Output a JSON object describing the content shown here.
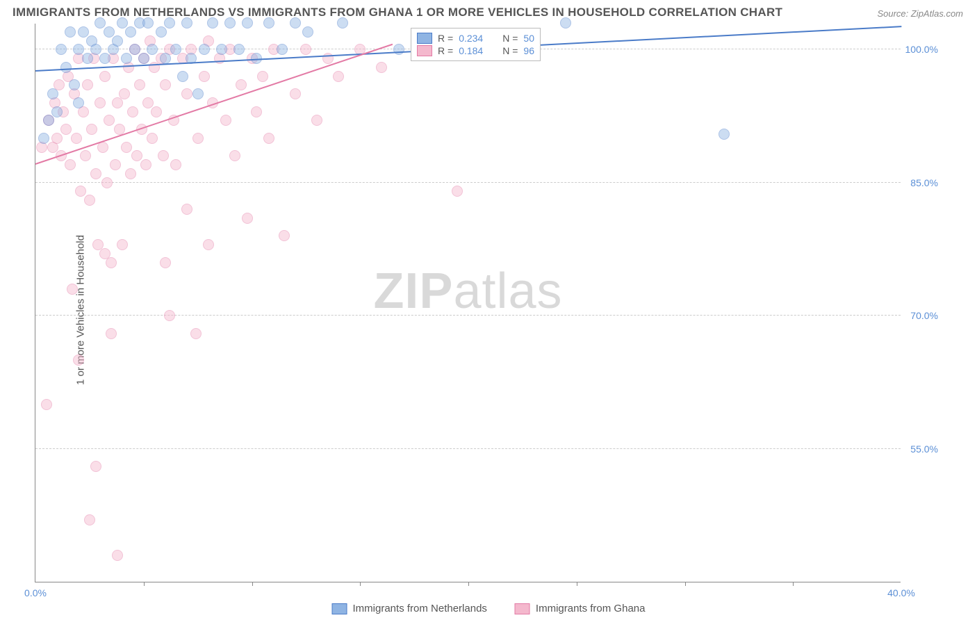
{
  "title": "IMMIGRANTS FROM NETHERLANDS VS IMMIGRANTS FROM GHANA 1 OR MORE VEHICLES IN HOUSEHOLD CORRELATION CHART",
  "source": "Source: ZipAtlas.com",
  "ylabel": "1 or more Vehicles in Household",
  "watermark_a": "ZIP",
  "watermark_b": "atlas",
  "chart": {
    "type": "scatter",
    "xlim": [
      0,
      40
    ],
    "ylim": [
      40,
      103
    ],
    "xticks": [
      0,
      40
    ],
    "xtick_labels": [
      "0.0%",
      "40.0%"
    ],
    "xtick_marks_only": [
      5,
      10,
      15,
      20,
      25,
      30,
      35
    ],
    "yticks": [
      55,
      70,
      85,
      100
    ],
    "ytick_labels": [
      "55.0%",
      "70.0%",
      "85.0%",
      "100.0%"
    ],
    "grid_color": "#cccccc",
    "axis_color": "#888888",
    "background_color": "#ffffff",
    "marker_radius": 8,
    "marker_opacity": 0.45,
    "series": [
      {
        "name": "Immigrants from Netherlands",
        "fill": "#8fb4e3",
        "stroke": "#4a7bc8",
        "line_color": "#4a7bc8",
        "R": "0.234",
        "N": "50",
        "regression": {
          "x1": 0,
          "y1": 97.5,
          "x2": 40,
          "y2": 102.5
        },
        "points": [
          [
            0.4,
            90
          ],
          [
            0.6,
            92
          ],
          [
            0.8,
            95
          ],
          [
            1.0,
            93
          ],
          [
            1.2,
            100
          ],
          [
            1.4,
            98
          ],
          [
            1.6,
            102
          ],
          [
            1.8,
            96
          ],
          [
            2.0,
            100
          ],
          [
            2.0,
            94
          ],
          [
            2.2,
            102
          ],
          [
            2.4,
            99
          ],
          [
            2.6,
            101
          ],
          [
            2.8,
            100
          ],
          [
            3.0,
            103
          ],
          [
            3.2,
            99
          ],
          [
            3.4,
            102
          ],
          [
            3.6,
            100
          ],
          [
            3.8,
            101
          ],
          [
            4.0,
            103
          ],
          [
            4.2,
            99
          ],
          [
            4.4,
            102
          ],
          [
            4.6,
            100
          ],
          [
            4.8,
            103
          ],
          [
            5.0,
            99
          ],
          [
            5.2,
            103
          ],
          [
            5.4,
            100
          ],
          [
            5.8,
            102
          ],
          [
            6.0,
            99
          ],
          [
            6.2,
            103
          ],
          [
            6.5,
            100
          ],
          [
            6.8,
            97
          ],
          [
            7.0,
            103
          ],
          [
            7.2,
            99
          ],
          [
            7.5,
            95
          ],
          [
            7.8,
            100
          ],
          [
            8.2,
            103
          ],
          [
            8.6,
            100
          ],
          [
            9.0,
            103
          ],
          [
            9.4,
            100
          ],
          [
            9.8,
            103
          ],
          [
            10.2,
            99
          ],
          [
            10.8,
            103
          ],
          [
            11.4,
            100
          ],
          [
            12.0,
            103
          ],
          [
            12.6,
            102
          ],
          [
            14.2,
            103
          ],
          [
            16.8,
            100
          ],
          [
            24.5,
            103
          ],
          [
            31.8,
            90.5
          ]
        ]
      },
      {
        "name": "Immigrants from Ghana",
        "fill": "#f4b8cd",
        "stroke": "#e37aa5",
        "line_color": "#e37aa5",
        "R": "0.184",
        "N": "96",
        "regression": {
          "x1": 0,
          "y1": 87,
          "x2": 16.5,
          "y2": 100.5
        },
        "points": [
          [
            0.3,
            89
          ],
          [
            0.5,
            60
          ],
          [
            0.6,
            92
          ],
          [
            0.8,
            89
          ],
          [
            0.9,
            94
          ],
          [
            1.0,
            90
          ],
          [
            1.1,
            96
          ],
          [
            1.2,
            88
          ],
          [
            1.3,
            93
          ],
          [
            1.4,
            91
          ],
          [
            1.5,
            97
          ],
          [
            1.6,
            87
          ],
          [
            1.7,
            73
          ],
          [
            1.8,
            95
          ],
          [
            1.9,
            90
          ],
          [
            2.0,
            65
          ],
          [
            2.0,
            99
          ],
          [
            2.1,
            84
          ],
          [
            2.2,
            93
          ],
          [
            2.3,
            88
          ],
          [
            2.4,
            96
          ],
          [
            2.5,
            83
          ],
          [
            2.5,
            47
          ],
          [
            2.6,
            91
          ],
          [
            2.7,
            99
          ],
          [
            2.8,
            86
          ],
          [
            2.8,
            53
          ],
          [
            2.9,
            78
          ],
          [
            3.0,
            94
          ],
          [
            3.1,
            89
          ],
          [
            3.2,
            97
          ],
          [
            3.2,
            77
          ],
          [
            3.3,
            85
          ],
          [
            3.4,
            92
          ],
          [
            3.5,
            76
          ],
          [
            3.5,
            68
          ],
          [
            3.6,
            99
          ],
          [
            3.7,
            87
          ],
          [
            3.8,
            43
          ],
          [
            3.8,
            94
          ],
          [
            3.9,
            91
          ],
          [
            4.0,
            78
          ],
          [
            4.1,
            95
          ],
          [
            4.2,
            89
          ],
          [
            4.3,
            98
          ],
          [
            4.4,
            86
          ],
          [
            4.5,
            93
          ],
          [
            4.6,
            100
          ],
          [
            4.7,
            88
          ],
          [
            4.8,
            96
          ],
          [
            4.9,
            91
          ],
          [
            5.0,
            99
          ],
          [
            5.1,
            87
          ],
          [
            5.2,
            94
          ],
          [
            5.3,
            101
          ],
          [
            5.4,
            90
          ],
          [
            5.5,
            98
          ],
          [
            5.6,
            93
          ],
          [
            5.8,
            99
          ],
          [
            5.9,
            88
          ],
          [
            6.0,
            76
          ],
          [
            6.0,
            96
          ],
          [
            6.2,
            70
          ],
          [
            6.2,
            100
          ],
          [
            6.4,
            92
          ],
          [
            6.5,
            87
          ],
          [
            6.8,
            99
          ],
          [
            7.0,
            82
          ],
          [
            7.0,
            95
          ],
          [
            7.2,
            100
          ],
          [
            7.4,
            68
          ],
          [
            7.5,
            90
          ],
          [
            7.8,
            97
          ],
          [
            8.0,
            101
          ],
          [
            8.0,
            78
          ],
          [
            8.2,
            94
          ],
          [
            8.5,
            99
          ],
          [
            8.8,
            92
          ],
          [
            9.0,
            100
          ],
          [
            9.2,
            88
          ],
          [
            9.5,
            96
          ],
          [
            9.8,
            81
          ],
          [
            10.0,
            99
          ],
          [
            10.2,
            93
          ],
          [
            10.5,
            97
          ],
          [
            10.8,
            90
          ],
          [
            11.0,
            100
          ],
          [
            11.5,
            79
          ],
          [
            12.0,
            95
          ],
          [
            12.5,
            100
          ],
          [
            13.0,
            92
          ],
          [
            13.5,
            99
          ],
          [
            14.0,
            97
          ],
          [
            15.0,
            100
          ],
          [
            16.0,
            98
          ],
          [
            19.5,
            84
          ]
        ]
      }
    ]
  },
  "stats_box": {
    "rows": [
      {
        "series_idx": 0,
        "R_label": "R =",
        "N_label": "N ="
      },
      {
        "series_idx": 1,
        "R_label": "R =",
        "N_label": "N ="
      }
    ]
  },
  "legend": {
    "items": [
      {
        "series_idx": 0
      },
      {
        "series_idx": 1
      }
    ]
  }
}
